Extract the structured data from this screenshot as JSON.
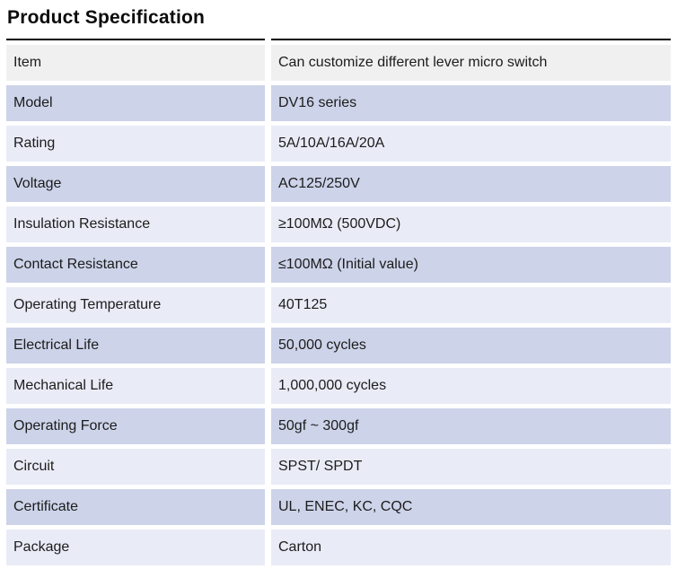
{
  "title": "Product Specification",
  "colors": {
    "row_gray": "#f0f0f0",
    "row_dark": "#cdd3e9",
    "row_light": "#e9ecf7",
    "top_rule": "#000000",
    "text": "#1c1c1c",
    "background": "#ffffff"
  },
  "table": {
    "rows": [
      {
        "label": "Item",
        "value": "Can customize different lever micro switch",
        "tone": "gray"
      },
      {
        "label": "Model",
        "value": "DV16 series",
        "tone": "dark"
      },
      {
        "label": "Rating",
        "value": "5A/10A/16A/20A",
        "tone": "light"
      },
      {
        "label": "Voltage",
        "value": "AC125/250V",
        "tone": "dark"
      },
      {
        "label": "Insulation Resistance",
        "value": "≥100MΩ (500VDC)",
        "tone": "light"
      },
      {
        "label": "Contact Resistance",
        "value": "≤100MΩ (Initial value)",
        "tone": "dark"
      },
      {
        "label": "Operating Temperature",
        "value": "40T125",
        "tone": "light"
      },
      {
        "label": "Electrical Life",
        "value": "50,000 cycles",
        "tone": "dark"
      },
      {
        "label": "Mechanical Life",
        "value": "1,000,000 cycles",
        "tone": "light"
      },
      {
        "label": "Operating Force",
        "value": "50gf ~ 300gf",
        "tone": "dark"
      },
      {
        "label": "Circuit",
        "value": "SPST/ SPDT",
        "tone": "light"
      },
      {
        "label": "Certificate",
        "value": "UL, ENEC, KC, CQC",
        "tone": "dark"
      },
      {
        "label": "Package",
        "value": "Carton",
        "tone": "light"
      }
    ]
  }
}
